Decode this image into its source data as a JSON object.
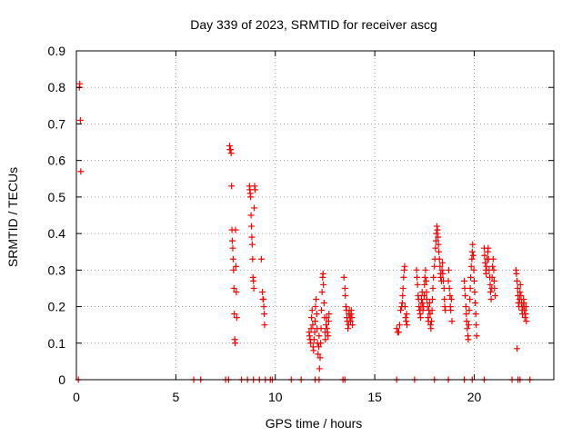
{
  "chart_data": {
    "type": "scatter",
    "title": "Day 339 of 2023, SRMTID for receiver ascg",
    "xlabel": "GPS time / hours",
    "ylabel": "SRMTID / TECUs",
    "xlim": [
      0,
      24
    ],
    "ylim": [
      0,
      0.9
    ],
    "xticks": [
      0,
      5,
      10,
      15,
      20
    ],
    "xtick_labels": [
      "0",
      "5",
      "10",
      "15",
      "20"
    ],
    "yticks": [
      0,
      0.1,
      0.2,
      0.3,
      0.4,
      0.5,
      0.6,
      0.7,
      0.8,
      0.9
    ],
    "ytick_labels": [
      "0",
      "0.1",
      "0.2",
      "0.3",
      "0.4",
      "0.5",
      "0.6",
      "0.7",
      "0.8",
      "0.9"
    ],
    "grid": true,
    "legend": "none",
    "marker": "+",
    "color": "#ff0000",
    "series": [
      {
        "name": "SRMTID",
        "points": [
          [
            0.1,
            0.0
          ],
          [
            0.15,
            0.8
          ],
          [
            0.17,
            0.81
          ],
          [
            0.2,
            0.71
          ],
          [
            0.22,
            0.57
          ],
          [
            5.9,
            0.0
          ],
          [
            6.25,
            0.0
          ],
          [
            7.5,
            0.0
          ],
          [
            7.65,
            0.0
          ],
          [
            7.7,
            0.64
          ],
          [
            7.72,
            0.63
          ],
          [
            7.75,
            0.63
          ],
          [
            7.78,
            0.62
          ],
          [
            7.8,
            0.53
          ],
          [
            7.82,
            0.41
          ],
          [
            7.84,
            0.38
          ],
          [
            7.86,
            0.36
          ],
          [
            7.88,
            0.33
          ],
          [
            7.9,
            0.3
          ],
          [
            7.92,
            0.25
          ],
          [
            7.94,
            0.18
          ],
          [
            7.96,
            0.11
          ],
          [
            7.98,
            0.1
          ],
          [
            8.0,
            0.41
          ],
          [
            8.02,
            0.31
          ],
          [
            8.04,
            0.24
          ],
          [
            8.06,
            0.17
          ],
          [
            8.3,
            0.0
          ],
          [
            8.6,
            0.0
          ],
          [
            8.9,
            0.0
          ],
          [
            9.2,
            0.0
          ],
          [
            9.5,
            0.0
          ],
          [
            9.75,
            0.0
          ],
          [
            9.85,
            0.0
          ],
          [
            8.7,
            0.53
          ],
          [
            8.72,
            0.52
          ],
          [
            8.74,
            0.51
          ],
          [
            8.76,
            0.5
          ],
          [
            8.78,
            0.45
          ],
          [
            8.8,
            0.42
          ],
          [
            8.82,
            0.39
          ],
          [
            8.84,
            0.37
          ],
          [
            8.86,
            0.33
          ],
          [
            8.88,
            0.28
          ],
          [
            8.9,
            0.27
          ],
          [
            8.92,
            0.25
          ],
          [
            8.94,
            0.47
          ],
          [
            8.96,
            0.53
          ],
          [
            8.98,
            0.52
          ],
          [
            9.3,
            0.33
          ],
          [
            9.35,
            0.24
          ],
          [
            9.38,
            0.22
          ],
          [
            9.4,
            0.22
          ],
          [
            9.42,
            0.2
          ],
          [
            9.44,
            0.18
          ],
          [
            9.46,
            0.15
          ],
          [
            10.8,
            0.0
          ],
          [
            11.3,
            0.0
          ],
          [
            12.0,
            0.0
          ],
          [
            12.2,
            0.0
          ],
          [
            11.7,
            0.13
          ],
          [
            11.72,
            0.12
          ],
          [
            11.75,
            0.11
          ],
          [
            11.78,
            0.1
          ],
          [
            11.8,
            0.14
          ],
          [
            11.82,
            0.17
          ],
          [
            11.85,
            0.19
          ],
          [
            11.88,
            0.15
          ],
          [
            11.9,
            0.09
          ],
          [
            11.92,
            0.08
          ],
          [
            11.95,
            0.11
          ],
          [
            11.98,
            0.13
          ],
          [
            12.0,
            0.16
          ],
          [
            12.02,
            0.2
          ],
          [
            12.05,
            0.22
          ],
          [
            12.08,
            0.18
          ],
          [
            12.1,
            0.14
          ],
          [
            12.12,
            0.1
          ],
          [
            12.15,
            0.07
          ],
          [
            12.18,
            0.09
          ],
          [
            12.2,
            0.12
          ],
          [
            12.22,
            0.03
          ],
          [
            12.25,
            0.06
          ],
          [
            12.28,
            0.1
          ],
          [
            12.3,
            0.14
          ],
          [
            12.32,
            0.19
          ],
          [
            12.35,
            0.24
          ],
          [
            12.38,
            0.28
          ],
          [
            12.4,
            0.29
          ],
          [
            12.42,
            0.26
          ],
          [
            12.45,
            0.21
          ],
          [
            12.48,
            0.17
          ],
          [
            12.5,
            0.13
          ],
          [
            12.52,
            0.11
          ],
          [
            12.55,
            0.15
          ],
          [
            12.58,
            0.17
          ],
          [
            12.6,
            0.14
          ],
          [
            12.62,
            0.13
          ],
          [
            12.65,
            0.12
          ],
          [
            12.68,
            0.16
          ],
          [
            12.7,
            0.18
          ],
          [
            13.4,
            0.0
          ],
          [
            13.5,
            0.0
          ],
          [
            13.45,
            0.28
          ],
          [
            13.5,
            0.25
          ],
          [
            13.52,
            0.23
          ],
          [
            13.55,
            0.2
          ],
          [
            13.58,
            0.19
          ],
          [
            13.6,
            0.17
          ],
          [
            13.62,
            0.16
          ],
          [
            13.65,
            0.14
          ],
          [
            13.68,
            0.15
          ],
          [
            13.7,
            0.18
          ],
          [
            13.72,
            0.19
          ],
          [
            13.75,
            0.17
          ],
          [
            13.78,
            0.16
          ],
          [
            13.8,
            0.18
          ],
          [
            13.82,
            0.19
          ],
          [
            13.85,
            0.17
          ],
          [
            13.88,
            0.15
          ],
          [
            16.1,
            0.0
          ],
          [
            17.0,
            0.0
          ],
          [
            18.0,
            0.0
          ],
          [
            18.7,
            0.0
          ],
          [
            19.5,
            0.0
          ],
          [
            19.9,
            0.0
          ],
          [
            20.5,
            0.0
          ],
          [
            21.9,
            0.0
          ],
          [
            22.2,
            0.0
          ],
          [
            22.3,
            0.0
          ],
          [
            22.8,
            0.0
          ],
          [
            16.1,
            0.14
          ],
          [
            16.15,
            0.13
          ],
          [
            16.2,
            0.13
          ],
          [
            16.25,
            0.15
          ],
          [
            16.3,
            0.19
          ],
          [
            16.35,
            0.2
          ],
          [
            16.38,
            0.21
          ],
          [
            16.4,
            0.23
          ],
          [
            16.42,
            0.25
          ],
          [
            16.45,
            0.28
          ],
          [
            16.48,
            0.3
          ],
          [
            16.5,
            0.31
          ],
          [
            16.52,
            0.2
          ],
          [
            16.55,
            0.17
          ],
          [
            16.58,
            0.16
          ],
          [
            16.6,
            0.18
          ],
          [
            16.62,
            0.15
          ],
          [
            17.1,
            0.3
          ],
          [
            17.12,
            0.28
          ],
          [
            17.15,
            0.26
          ],
          [
            17.18,
            0.23
          ],
          [
            17.2,
            0.22
          ],
          [
            17.22,
            0.2
          ],
          [
            17.25,
            0.19
          ],
          [
            17.28,
            0.18
          ],
          [
            17.3,
            0.17
          ],
          [
            17.32,
            0.2
          ],
          [
            17.35,
            0.22
          ],
          [
            17.38,
            0.24
          ],
          [
            17.4,
            0.21
          ],
          [
            17.42,
            0.19
          ],
          [
            17.45,
            0.2
          ],
          [
            17.48,
            0.23
          ],
          [
            17.5,
            0.26
          ],
          [
            17.52,
            0.28
          ],
          [
            17.55,
            0.3
          ],
          [
            17.58,
            0.27
          ],
          [
            17.6,
            0.24
          ],
          [
            17.62,
            0.22
          ],
          [
            17.65,
            0.2
          ],
          [
            17.68,
            0.17
          ],
          [
            17.7,
            0.16
          ],
          [
            17.72,
            0.19
          ],
          [
            17.75,
            0.21
          ],
          [
            17.78,
            0.18
          ],
          [
            17.8,
            0.15
          ],
          [
            17.82,
            0.14
          ],
          [
            17.85,
            0.16
          ],
          [
            17.88,
            0.19
          ],
          [
            17.9,
            0.22
          ],
          [
            17.92,
            0.25
          ],
          [
            17.95,
            0.28
          ],
          [
            18.0,
            0.31
          ],
          [
            18.02,
            0.33
          ],
          [
            18.05,
            0.36
          ],
          [
            18.08,
            0.38
          ],
          [
            18.1,
            0.4
          ],
          [
            18.12,
            0.42
          ],
          [
            18.15,
            0.41
          ],
          [
            18.18,
            0.39
          ],
          [
            18.2,
            0.37
          ],
          [
            18.22,
            0.35
          ],
          [
            18.25,
            0.33
          ],
          [
            18.28,
            0.31
          ],
          [
            18.3,
            0.29
          ],
          [
            18.32,
            0.28
          ],
          [
            18.35,
            0.27
          ],
          [
            18.38,
            0.3
          ],
          [
            18.4,
            0.32
          ],
          [
            18.42,
            0.29
          ],
          [
            18.45,
            0.27
          ],
          [
            18.48,
            0.25
          ],
          [
            18.5,
            0.22
          ],
          [
            18.52,
            0.2
          ],
          [
            18.55,
            0.19
          ],
          [
            18.7,
            0.27
          ],
          [
            18.72,
            0.3
          ],
          [
            18.75,
            0.25
          ],
          [
            18.78,
            0.23
          ],
          [
            18.8,
            0.2
          ],
          [
            18.82,
            0.19
          ],
          [
            18.85,
            0.22
          ],
          [
            18.88,
            0.16
          ],
          [
            19.5,
            0.27
          ],
          [
            19.52,
            0.25
          ],
          [
            19.55,
            0.23
          ],
          [
            19.58,
            0.2
          ],
          [
            19.6,
            0.18
          ],
          [
            19.62,
            0.16
          ],
          [
            19.65,
            0.14
          ],
          [
            19.68,
            0.12
          ],
          [
            19.7,
            0.11
          ],
          [
            19.72,
            0.15
          ],
          [
            19.75,
            0.19
          ],
          [
            19.78,
            0.22
          ],
          [
            19.8,
            0.25
          ],
          [
            19.82,
            0.28
          ],
          [
            19.85,
            0.31
          ],
          [
            19.88,
            0.33
          ],
          [
            19.9,
            0.35
          ],
          [
            19.92,
            0.37
          ],
          [
            19.95,
            0.34
          ],
          [
            19.98,
            0.3
          ],
          [
            20.0,
            0.27
          ],
          [
            20.02,
            0.24
          ],
          [
            20.05,
            0.21
          ],
          [
            20.08,
            0.18
          ],
          [
            20.1,
            0.15
          ],
          [
            20.12,
            0.12
          ],
          [
            20.5,
            0.36
          ],
          [
            20.52,
            0.34
          ],
          [
            20.55,
            0.32
          ],
          [
            20.58,
            0.3
          ],
          [
            20.6,
            0.29
          ],
          [
            20.62,
            0.31
          ],
          [
            20.65,
            0.33
          ],
          [
            20.68,
            0.35
          ],
          [
            20.7,
            0.36
          ],
          [
            20.72,
            0.33
          ],
          [
            20.75,
            0.3
          ],
          [
            20.78,
            0.28
          ],
          [
            20.8,
            0.26
          ],
          [
            20.82,
            0.24
          ],
          [
            20.85,
            0.22
          ],
          [
            20.88,
            0.25
          ],
          [
            20.9,
            0.28
          ],
          [
            20.92,
            0.31
          ],
          [
            20.95,
            0.33
          ],
          [
            20.98,
            0.3
          ],
          [
            21.0,
            0.27
          ],
          [
            21.02,
            0.25
          ],
          [
            21.05,
            0.23
          ],
          [
            22.1,
            0.3
          ],
          [
            22.12,
            0.29
          ],
          [
            22.15,
            0.27
          ],
          [
            22.18,
            0.25
          ],
          [
            22.2,
            0.23
          ],
          [
            22.22,
            0.21
          ],
          [
            22.25,
            0.2
          ],
          [
            22.28,
            0.22
          ],
          [
            22.3,
            0.24
          ],
          [
            22.32,
            0.26
          ],
          [
            22.35,
            0.23
          ],
          [
            22.38,
            0.21
          ],
          [
            22.4,
            0.19
          ],
          [
            22.42,
            0.18
          ],
          [
            22.45,
            0.2
          ],
          [
            22.48,
            0.22
          ],
          [
            22.5,
            0.21
          ],
          [
            22.52,
            0.19
          ],
          [
            22.55,
            0.17
          ],
          [
            22.58,
            0.18
          ],
          [
            22.6,
            0.2
          ],
          [
            22.62,
            0.16
          ],
          [
            22.15,
            0.085
          ]
        ]
      }
    ]
  }
}
